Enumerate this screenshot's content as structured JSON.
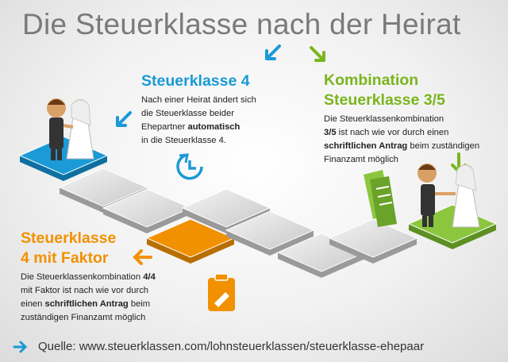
{
  "title": "Die Steuerklasse nach der Heirat",
  "sections": [
    {
      "heading": [
        "Steuerklasse 4"
      ],
      "body": [
        [
          {
            "text": "Nach einer Heirat ändert sich",
            "bold": false
          }
        ],
        [
          {
            "text": "die Steuerklasse beider",
            "bold": false
          }
        ],
        [
          {
            "text": "Ehepartner ",
            "bold": false
          },
          {
            "text": "automatisch",
            "bold": true
          }
        ],
        [
          {
            "text": "in die Steuerklasse 4.",
            "bold": false
          }
        ]
      ]
    },
    {
      "heading": [
        "Kombination",
        "Steuerklasse 3/5"
      ],
      "body": [
        [
          {
            "text": "Die Steuerklassenkombination",
            "bold": false
          }
        ],
        [
          {
            "text": "3/5",
            "bold": true
          },
          {
            "text": " ist nach wie vor durch einen",
            "bold": false
          }
        ],
        [
          {
            "text": "schriftlichen Antrag",
            "bold": true
          },
          {
            "text": " beim zuständigen",
            "bold": false
          }
        ],
        [
          {
            "text": "Finanzamt möglich",
            "bold": false
          }
        ]
      ]
    },
    {
      "heading": [
        "Steuerklasse",
        "4 mit Faktor"
      ],
      "body": [
        [
          {
            "text": "Die Steuerklassenkombination ",
            "bold": false
          },
          {
            "text": "4/4",
            "bold": true
          }
        ],
        [
          {
            "text": "mit Faktor ist nach wie vor durch",
            "bold": false
          }
        ],
        [
          {
            "text": "einen ",
            "bold": false
          },
          {
            "text": "schriftlichen Antrag",
            "bold": true
          },
          {
            "text": " beim",
            "bold": false
          }
        ],
        [
          {
            "text": "zuständigen Finanzamt möglich",
            "bold": false
          }
        ]
      ]
    }
  ],
  "source": "Quelle: www.steuerklassen.com/lohnsteuerklassen/steuerklasse-ehepaar"
}
